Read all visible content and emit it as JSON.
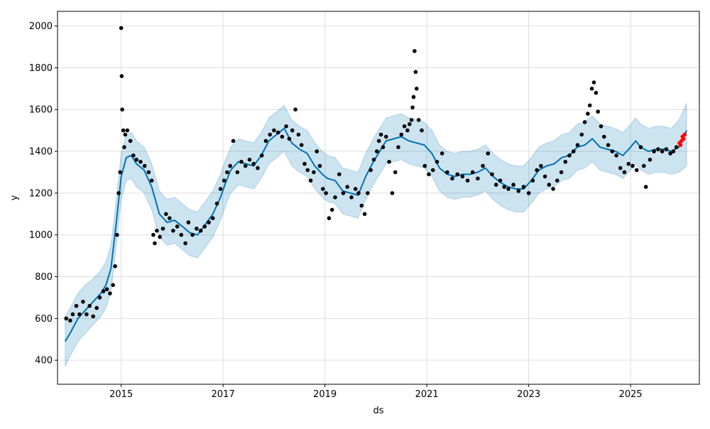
{
  "chart_data": {
    "type": "line",
    "title": "",
    "xlabel": "ds",
    "ylabel": "y",
    "xlim": [
      2013.75,
      2026.35
    ],
    "ylim": [
      285,
      2070
    ],
    "grid": true,
    "x_ticks": [
      2015,
      2017,
      2019,
      2021,
      2023,
      2025
    ],
    "x_tick_labels": [
      "2015",
      "2017",
      "2019",
      "2021",
      "2023",
      "2025"
    ],
    "y_ticks": [
      400,
      600,
      800,
      1000,
      1200,
      1400,
      1600,
      1800,
      2000
    ],
    "y_tick_labels": [
      "400",
      "600",
      "800",
      "1000",
      "1200",
      "1400",
      "1600",
      "1800",
      "2000"
    ],
    "colors": {
      "forecast": "#0072B2",
      "band": "#0072B2",
      "observed": "#000000",
      "recent": "#ff0000",
      "grid": "#dddddd"
    },
    "series": [
      {
        "role": "forecast",
        "x": [
          2013.9,
          2014.0,
          2014.15,
          2014.3,
          2014.45,
          2014.6,
          2014.7,
          2014.8,
          2014.9,
          2015.0,
          2015.1,
          2015.2,
          2015.3,
          2015.45,
          2015.6,
          2015.75,
          2015.9,
          2016.05,
          2016.2,
          2016.35,
          2016.5,
          2016.65,
          2016.8,
          2016.95,
          2017.05,
          2017.15,
          2017.3,
          2017.45,
          2017.6,
          2017.75,
          2017.9,
          2018.05,
          2018.2,
          2018.35,
          2018.5,
          2018.65,
          2018.8,
          2018.95,
          2019.05,
          2019.2,
          2019.35,
          2019.5,
          2019.65,
          2019.8,
          2019.95,
          2020.1,
          2020.2,
          2020.35,
          2020.5,
          2020.65,
          2020.8,
          2020.95,
          2021.1,
          2021.25,
          2021.4,
          2021.55,
          2021.7,
          2021.85,
          2022.0,
          2022.15,
          2022.3,
          2022.45,
          2022.6,
          2022.75,
          2022.9,
          2023.05,
          2023.2,
          2023.35,
          2023.5,
          2023.65,
          2023.8,
          2023.95,
          2024.1,
          2024.25,
          2024.4,
          2024.55,
          2024.7,
          2024.85,
          2025.0,
          2025.1,
          2025.2,
          2025.35,
          2025.5,
          2025.65,
          2025.8,
          2025.95,
          2026.1
        ],
        "y": [
          490,
          530,
          600,
          640,
          680,
          720,
          760,
          840,
          1050,
          1280,
          1370,
          1380,
          1340,
          1310,
          1230,
          1100,
          1060,
          1070,
          1040,
          1010,
          1000,
          1050,
          1100,
          1180,
          1250,
          1310,
          1350,
          1340,
          1330,
          1380,
          1450,
          1480,
          1510,
          1440,
          1410,
          1390,
          1330,
          1290,
          1270,
          1260,
          1210,
          1200,
          1190,
          1280,
          1350,
          1410,
          1450,
          1460,
          1470,
          1450,
          1440,
          1430,
          1390,
          1320,
          1290,
          1280,
          1290,
          1290,
          1300,
          1320,
          1280,
          1250,
          1230,
          1220,
          1220,
          1260,
          1310,
          1330,
          1340,
          1370,
          1380,
          1420,
          1430,
          1460,
          1420,
          1410,
          1400,
          1380,
          1420,
          1450,
          1420,
          1400,
          1410,
          1410,
          1400,
          1420,
          1500
        ],
        "lower": [
          370,
          420,
          490,
          530,
          570,
          610,
          650,
          730,
          940,
          1170,
          1260,
          1270,
          1230,
          1200,
          1120,
          990,
          950,
          960,
          930,
          900,
          890,
          940,
          990,
          1070,
          1140,
          1200,
          1240,
          1230,
          1220,
          1270,
          1340,
          1370,
          1400,
          1330,
          1300,
          1280,
          1220,
          1180,
          1160,
          1150,
          1100,
          1090,
          1080,
          1170,
          1240,
          1300,
          1340,
          1350,
          1360,
          1340,
          1330,
          1320,
          1280,
          1210,
          1180,
          1170,
          1180,
          1180,
          1190,
          1210,
          1170,
          1140,
          1120,
          1110,
          1110,
          1150,
          1200,
          1220,
          1230,
          1260,
          1270,
          1310,
          1320,
          1350,
          1310,
          1300,
          1290,
          1270,
          1310,
          1340,
          1310,
          1290,
          1300,
          1300,
          1290,
          1300,
          1330
        ],
        "upper": [
          610,
          650,
          720,
          760,
          790,
          830,
          870,
          950,
          1160,
          1390,
          1480,
          1490,
          1450,
          1420,
          1340,
          1210,
          1170,
          1180,
          1150,
          1120,
          1110,
          1160,
          1210,
          1290,
          1360,
          1420,
          1460,
          1450,
          1440,
          1490,
          1560,
          1590,
          1620,
          1550,
          1520,
          1500,
          1440,
          1400,
          1380,
          1370,
          1320,
          1310,
          1300,
          1390,
          1460,
          1520,
          1560,
          1570,
          1580,
          1560,
          1550,
          1540,
          1500,
          1430,
          1400,
          1390,
          1400,
          1400,
          1410,
          1430,
          1390,
          1360,
          1340,
          1330,
          1330,
          1370,
          1420,
          1440,
          1450,
          1480,
          1490,
          1530,
          1540,
          1570,
          1530,
          1520,
          1510,
          1490,
          1530,
          1560,
          1530,
          1510,
          1520,
          1520,
          1510,
          1550,
          1630
        ]
      },
      {
        "role": "observed",
        "x": [
          2013.92,
          2014.0,
          2014.05,
          2014.12,
          2014.18,
          2014.25,
          2014.32,
          2014.38,
          2014.45,
          2014.52,
          2014.58,
          2014.65,
          2014.72,
          2014.78,
          2014.84,
          2014.88,
          2014.92,
          2014.95,
          2014.98,
          2015.0,
          2015.01,
          2015.02,
          2015.04,
          2015.06,
          2015.08,
          2015.12,
          2015.18,
          2015.24,
          2015.3,
          2015.38,
          2015.46,
          2015.54,
          2015.6,
          2015.63,
          2015.66,
          2015.7,
          2015.76,
          2015.82,
          2015.88,
          2015.95,
          2016.02,
          2016.1,
          2016.18,
          2016.26,
          2016.32,
          2016.4,
          2016.48,
          2016.56,
          2016.64,
          2016.72,
          2016.8,
          2016.88,
          2016.95,
          2017.02,
          2017.08,
          2017.14,
          2017.2,
          2017.28,
          2017.36,
          2017.44,
          2017.52,
          2017.6,
          2017.68,
          2017.76,
          2017.84,
          2017.92,
          2018.0,
          2018.08,
          2018.16,
          2018.24,
          2018.3,
          2018.36,
          2018.42,
          2018.48,
          2018.54,
          2018.6,
          2018.66,
          2018.72,
          2018.78,
          2018.84,
          2018.9,
          2018.96,
          2019.02,
          2019.08,
          2019.14,
          2019.2,
          2019.28,
          2019.36,
          2019.44,
          2019.52,
          2019.6,
          2019.66,
          2019.72,
          2019.78,
          2019.84,
          2019.9,
          2019.96,
          2020.02,
          2020.06,
          2020.1,
          2020.14,
          2020.2,
          2020.26,
          2020.32,
          2020.38,
          2020.44,
          2020.5,
          2020.56,
          2020.62,
          2020.66,
          2020.7,
          2020.72,
          2020.74,
          2020.76,
          2020.78,
          2020.8,
          2020.84,
          2020.9,
          2020.96,
          2021.04,
          2021.12,
          2021.2,
          2021.3,
          2021.4,
          2021.5,
          2021.6,
          2021.7,
          2021.8,
          2021.9,
          2022.0,
          2022.1,
          2022.2,
          2022.28,
          2022.36,
          2022.44,
          2022.52,
          2022.6,
          2022.7,
          2022.8,
          2022.9,
          2023.0,
          2023.08,
          2023.16,
          2023.24,
          2023.32,
          2023.4,
          2023.48,
          2023.56,
          2023.64,
          2023.72,
          2023.8,
          2023.88,
          2023.96,
          2024.04,
          2024.1,
          2024.16,
          2024.2,
          2024.24,
          2024.28,
          2024.32,
          2024.36,
          2024.42,
          2024.48,
          2024.56,
          2024.64,
          2024.72,
          2024.8,
          2024.88,
          2024.96,
          2025.04,
          2025.12,
          2025.2,
          2025.26,
          2025.3,
          2025.38,
          2025.46,
          2025.54,
          2025.62,
          2025.7,
          2025.78,
          2025.84,
          2025.9
        ],
        "y": [
          600,
          590,
          620,
          660,
          620,
          680,
          620,
          660,
          610,
          650,
          700,
          730,
          740,
          720,
          760,
          850,
          1000,
          1200,
          1300,
          1990,
          1760,
          1600,
          1500,
          1420,
          1480,
          1500,
          1450,
          1380,
          1360,
          1350,
          1330,
          1300,
          1260,
          1000,
          960,
          1020,
          990,
          1030,
          1100,
          1080,
          1020,
          1040,
          1000,
          960,
          1060,
          1000,
          1030,
          1020,
          1040,
          1060,
          1080,
          1150,
          1220,
          1260,
          1300,
          1330,
          1450,
          1300,
          1350,
          1330,
          1360,
          1340,
          1320,
          1380,
          1450,
          1480,
          1500,
          1490,
          1470,
          1520,
          1460,
          1500,
          1600,
          1480,
          1430,
          1340,
          1310,
          1260,
          1300,
          1400,
          1330,
          1220,
          1200,
          1080,
          1120,
          1180,
          1290,
          1200,
          1230,
          1180,
          1220,
          1200,
          1140,
          1100,
          1200,
          1310,
          1360,
          1400,
          1450,
          1480,
          1420,
          1470,
          1350,
          1200,
          1300,
          1420,
          1480,
          1520,
          1500,
          1530,
          1550,
          1610,
          1660,
          1880,
          1780,
          1700,
          1550,
          1500,
          1330,
          1290,
          1310,
          1350,
          1390,
          1300,
          1270,
          1290,
          1280,
          1260,
          1300,
          1270,
          1330,
          1390,
          1290,
          1240,
          1260,
          1230,
          1220,
          1240,
          1210,
          1230,
          1200,
          1260,
          1310,
          1330,
          1280,
          1240,
          1220,
          1260,
          1300,
          1350,
          1380,
          1400,
          1430,
          1480,
          1540,
          1580,
          1620,
          1700,
          1730,
          1680,
          1590,
          1520,
          1470,
          1430,
          1400,
          1380,
          1320,
          1300,
          1340,
          1330,
          1310,
          1420,
          1330,
          1230,
          1360,
          1400,
          1410,
          1400,
          1410,
          1390,
          1400,
          1420
        ]
      },
      {
        "role": "recent",
        "x": [
          2025.96,
          2025.98,
          2026.0,
          2026.02,
          2026.04,
          2026.06
        ],
        "y": [
          1440,
          1430,
          1450,
          1470,
          1460,
          1480
        ]
      }
    ]
  }
}
